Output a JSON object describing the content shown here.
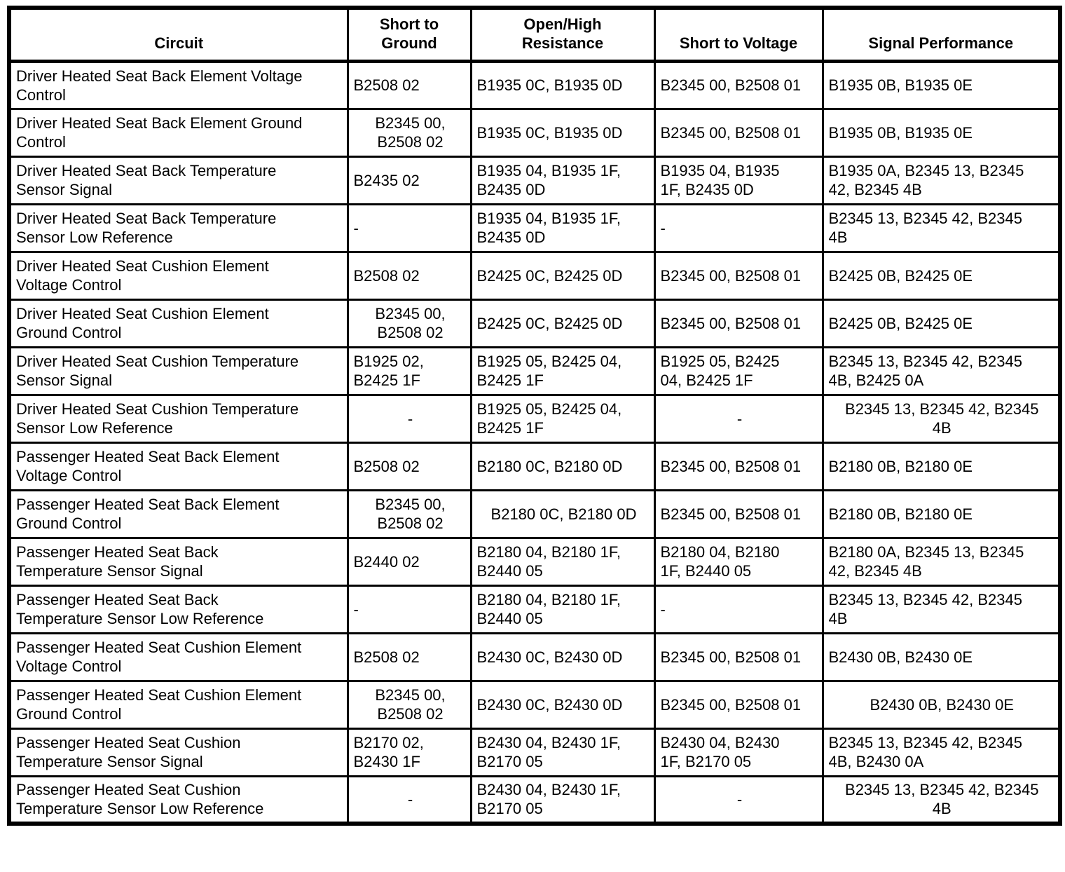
{
  "table": {
    "columns": [
      "Circuit",
      "Short to\nGround",
      "Open/High\nResistance",
      "Short to Voltage",
      "Signal Performance"
    ],
    "rows": [
      [
        {
          "text": "Driver Heated Seat Back Element Voltage\nControl",
          "align": "left"
        },
        {
          "text": "B2508 02",
          "align": "left"
        },
        {
          "text": "B1935 0C, B1935 0D",
          "align": "left"
        },
        {
          "text": "B2345 00, B2508 01",
          "align": "left"
        },
        {
          "text": "B1935 0B, B1935 0E",
          "align": "left"
        }
      ],
      [
        {
          "text": "Driver Heated Seat Back Element Ground\nControl",
          "align": "left"
        },
        {
          "text": "B2345 00,\nB2508 02",
          "align": "center"
        },
        {
          "text": "B1935 0C, B1935 0D",
          "align": "left"
        },
        {
          "text": "B2345 00, B2508 01",
          "align": "left"
        },
        {
          "text": "B1935 0B, B1935 0E",
          "align": "left"
        }
      ],
      [
        {
          "text": "Driver Heated Seat Back Temperature\nSensor Signal",
          "align": "left"
        },
        {
          "text": "B2435 02",
          "align": "left"
        },
        {
          "text": "B1935 04, B1935 1F,\nB2435 0D",
          "align": "left"
        },
        {
          "text": "B1935 04, B1935\n1F, B2435 0D",
          "align": "left"
        },
        {
          "text": "B1935 0A, B2345 13, B2345\n42, B2345 4B",
          "align": "left"
        }
      ],
      [
        {
          "text": "Driver Heated Seat Back Temperature\nSensor Low Reference",
          "align": "left"
        },
        {
          "text": "-",
          "align": "left"
        },
        {
          "text": "B1935 04, B1935 1F,\nB2435 0D",
          "align": "left"
        },
        {
          "text": "-",
          "align": "left"
        },
        {
          "text": "B2345 13, B2345 42, B2345\n4B",
          "align": "left"
        }
      ],
      [
        {
          "text": "Driver Heated Seat Cushion Element\nVoltage Control",
          "align": "left"
        },
        {
          "text": "B2508 02",
          "align": "left"
        },
        {
          "text": "B2425 0C, B2425 0D",
          "align": "left"
        },
        {
          "text": "B2345 00, B2508 01",
          "align": "left"
        },
        {
          "text": "B2425 0B, B2425 0E",
          "align": "left"
        }
      ],
      [
        {
          "text": "Driver Heated Seat Cushion Element\nGround Control",
          "align": "left"
        },
        {
          "text": "B2345 00,\nB2508 02",
          "align": "center"
        },
        {
          "text": "B2425 0C, B2425 0D",
          "align": "left"
        },
        {
          "text": "B2345 00, B2508 01",
          "align": "left"
        },
        {
          "text": "B2425 0B, B2425 0E",
          "align": "left"
        }
      ],
      [
        {
          "text": "Driver Heated Seat Cushion Temperature\nSensor Signal",
          "align": "left"
        },
        {
          "text": "B1925 02,\nB2425 1F",
          "align": "left"
        },
        {
          "text": "B1925 05, B2425 04,\nB2425 1F",
          "align": "left"
        },
        {
          "text": "B1925 05, B2425\n04, B2425 1F",
          "align": "left"
        },
        {
          "text": "B2345 13, B2345 42, B2345\n4B, B2425 0A",
          "align": "left"
        }
      ],
      [
        {
          "text": "Driver Heated Seat Cushion Temperature\nSensor Low Reference",
          "align": "left"
        },
        {
          "text": "-",
          "align": "center"
        },
        {
          "text": "B1925 05, B2425 04,\nB2425 1F",
          "align": "left"
        },
        {
          "text": "-",
          "align": "center"
        },
        {
          "text": "B2345 13, B2345 42, B2345\n4B",
          "align": "center"
        }
      ],
      [
        {
          "text": "Passenger Heated Seat Back Element\nVoltage Control",
          "align": "left"
        },
        {
          "text": "B2508 02",
          "align": "left"
        },
        {
          "text": "B2180 0C, B2180 0D",
          "align": "left"
        },
        {
          "text": "B2345 00, B2508 01",
          "align": "left"
        },
        {
          "text": "B2180 0B, B2180 0E",
          "align": "left"
        }
      ],
      [
        {
          "text": "Passenger Heated Seat Back Element\nGround Control",
          "align": "left"
        },
        {
          "text": "B2345 00,\nB2508 02",
          "align": "center"
        },
        {
          "text": "B2180 0C, B2180 0D",
          "align": "center"
        },
        {
          "text": "B2345 00, B2508 01",
          "align": "left"
        },
        {
          "text": "B2180 0B, B2180 0E",
          "align": "left"
        }
      ],
      [
        {
          "text": "Passenger Heated Seat Back\nTemperature Sensor Signal",
          "align": "left"
        },
        {
          "text": "B2440 02",
          "align": "left"
        },
        {
          "text": "B2180 04, B2180 1F,\nB2440 05",
          "align": "left"
        },
        {
          "text": "B2180 04, B2180\n1F, B2440 05",
          "align": "left"
        },
        {
          "text": "B2180 0A, B2345 13, B2345\n42, B2345 4B",
          "align": "left"
        }
      ],
      [
        {
          "text": "Passenger Heated Seat Back\nTemperature Sensor Low Reference",
          "align": "left"
        },
        {
          "text": "-",
          "align": "left"
        },
        {
          "text": "B2180 04, B2180 1F,\nB2440 05",
          "align": "left"
        },
        {
          "text": "-",
          "align": "left"
        },
        {
          "text": "B2345 13, B2345 42, B2345\n4B",
          "align": "left"
        }
      ],
      [
        {
          "text": "Passenger Heated Seat Cushion Element\nVoltage Control",
          "align": "left"
        },
        {
          "text": "B2508 02",
          "align": "left"
        },
        {
          "text": "B2430 0C, B2430 0D",
          "align": "left"
        },
        {
          "text": "B2345 00, B2508 01",
          "align": "left"
        },
        {
          "text": "B2430 0B, B2430 0E",
          "align": "left"
        }
      ],
      [
        {
          "text": "Passenger Heated Seat Cushion Element\nGround Control",
          "align": "left"
        },
        {
          "text": "B2345 00,\nB2508 02",
          "align": "center"
        },
        {
          "text": "B2430 0C, B2430 0D",
          "align": "left"
        },
        {
          "text": "B2345 00, B2508 01",
          "align": "left"
        },
        {
          "text": "B2430 0B, B2430 0E",
          "align": "center"
        }
      ],
      [
        {
          "text": "Passenger Heated Seat Cushion\nTemperature Sensor Signal",
          "align": "left"
        },
        {
          "text": "B2170 02,\nB2430 1F",
          "align": "left"
        },
        {
          "text": "B2430 04, B2430 1F,\nB2170 05",
          "align": "left"
        },
        {
          "text": "B2430 04, B2430\n1F, B2170 05",
          "align": "left"
        },
        {
          "text": "B2345 13, B2345 42, B2345\n4B, B2430 0A",
          "align": "left"
        }
      ],
      [
        {
          "text": "Passenger Heated Seat Cushion\nTemperature Sensor Low Reference",
          "align": "left"
        },
        {
          "text": "-",
          "align": "center"
        },
        {
          "text": "B2430 04, B2430 1F,\nB2170 05",
          "align": "left"
        },
        {
          "text": "-",
          "align": "center"
        },
        {
          "text": "B2345 13, B2345 42, B2345\n4B",
          "align": "center"
        }
      ]
    ]
  }
}
